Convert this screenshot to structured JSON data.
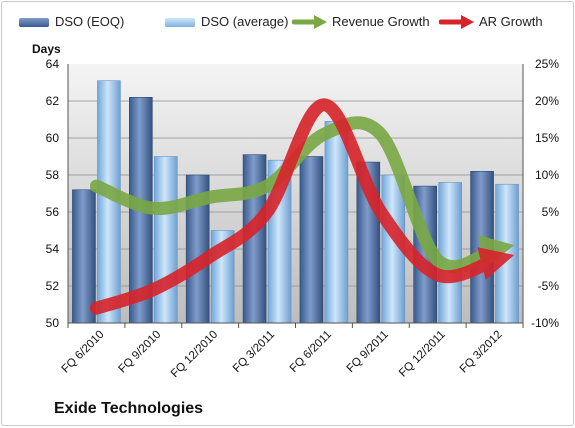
{
  "chart_data": {
    "type": "bar",
    "categories": [
      "FQ 6/2010",
      "FQ 9/2010",
      "FQ 12/2010",
      "FQ 3/2011",
      "FQ 6/2011",
      "FQ 9/2011",
      "FQ 12/2011",
      "FQ 3/2012"
    ],
    "series": [
      {
        "name": "DSO (EOQ)",
        "type": "bar",
        "axis": "left",
        "values": [
          57.2,
          62.2,
          58.0,
          59.1,
          59.0,
          58.7,
          57.4,
          58.2
        ]
      },
      {
        "name": "DSO (average)",
        "type": "bar",
        "axis": "left",
        "values": [
          63.1,
          59.0,
          55.0,
          58.8,
          60.9,
          58.0,
          57.6,
          57.5
        ]
      },
      {
        "name": "Revenue Growth",
        "type": "line",
        "axis": "right",
        "values": [
          8.5,
          5.5,
          7.0,
          8.5,
          15.5,
          15.5,
          -1.5,
          0.0
        ]
      },
      {
        "name": "AR Growth",
        "type": "line",
        "axis": "right",
        "values": [
          -8.0,
          -5.5,
          -1.0,
          5.0,
          19.5,
          5.0,
          -3.5,
          -1.5
        ]
      }
    ],
    "ylabel": "Days",
    "ylim": [
      50,
      64
    ],
    "yticks": [
      "50",
      "52",
      "54",
      "56",
      "58",
      "60",
      "62",
      "64"
    ],
    "y2lim": [
      -10,
      25
    ],
    "y2ticks": [
      "-10%",
      "-5%",
      "0%",
      "5%",
      "10%",
      "15%",
      "20%",
      "25%"
    ],
    "grid": true,
    "legend": "top",
    "caption": "Exide Technologies",
    "colors": {
      "dso_eoq": "#4a6a9c",
      "dso_avg": "#8fbce6",
      "revenue": "#7aa844",
      "ar": "#d8232a",
      "plot_bg_top": "#f4f4f4",
      "plot_bg_bottom": "#bdbdbd"
    }
  }
}
